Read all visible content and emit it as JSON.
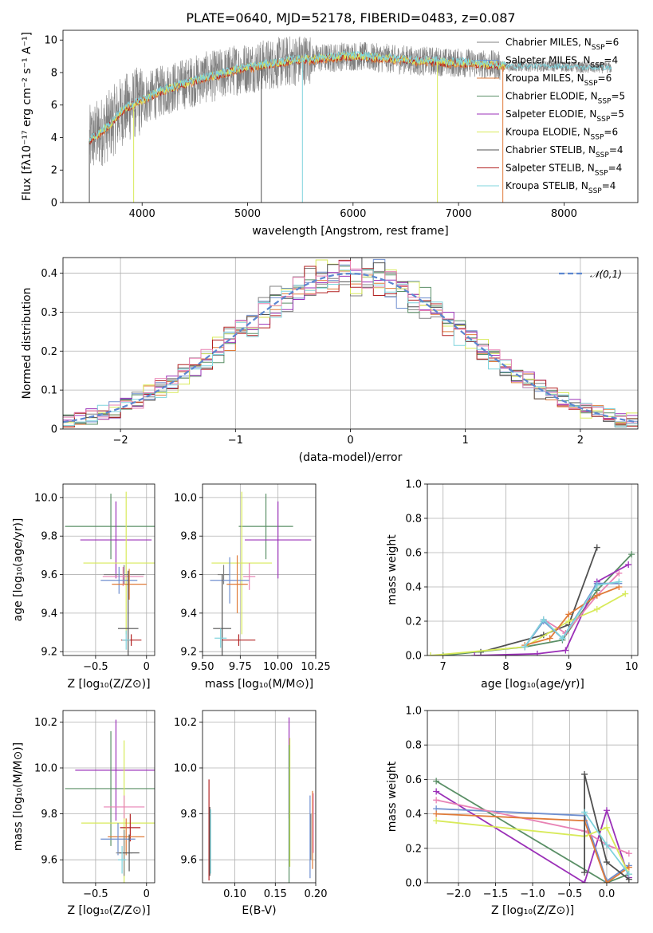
{
  "title": "PLATE=0640, MJD=52178, FIBERID=0483, z=0.087",
  "colors": {
    "Chabrier MILES": "#808080",
    "Salpeter MILES": "#6f8fcf",
    "Kroupa MILES": "#e07b39",
    "Chabrier ELODIE": "#5a8f66",
    "Salpeter ELODIE": "#9b30b8",
    "Kroupa ELODIE": "#d8ea5a",
    "Chabrier STELIB": "#505050",
    "Salpeter STELIB": "#b22222",
    "Kroupa STELIB": "#7fd4dd",
    "pink": "#e882b4",
    "gauss": "#5b86d0"
  },
  "chart_data": [
    {
      "id": "spectrum",
      "type": "line",
      "title": "PLATE=0640, MJD=52178, FIBERID=0483, z=0.087",
      "xlabel": "wavelength [Angstrom, rest frame]",
      "ylabel": "Flux [fλ10⁻¹⁷ erg cm⁻² s⁻¹ A⁻¹]",
      "xlim": [
        3250,
        8700
      ],
      "ylim": [
        0,
        10.6
      ],
      "xticks": [
        4000,
        5000,
        6000,
        7000,
        8000
      ],
      "yticks": [
        0,
        2,
        4,
        6,
        8,
        10
      ],
      "legend": "upper-right",
      "legend_entries": [
        "Chabrier MILES, N_SSP=6",
        "Salpeter MILES, N_SSP=4",
        "Kroupa MILES, N_SSP=6",
        "Chabrier ELODIE, N_SSP=5",
        "Salpeter ELODIE, N_SSP=5",
        "Kroupa ELODIE, N_SSP=6",
        "Chabrier STELIB, N_SSP=4",
        "Salpeter STELIB, N_SSP=4",
        "Kroupa STELIB, N_SSP=4"
      ],
      "data_trend": {
        "x": [
          3500,
          3600,
          3700,
          3800,
          3900,
          4000,
          4100,
          4200,
          4300,
          4400,
          4500,
          4600,
          4700,
          4800,
          4900,
          5000,
          5100,
          5200,
          5300,
          5400,
          5500,
          5600,
          5700,
          5800,
          5900,
          6000,
          6100,
          6200,
          6300,
          6400,
          6500,
          6600,
          6700,
          6800,
          6900,
          7000,
          7100,
          7200,
          7300,
          7400,
          7600,
          7800,
          8000,
          8200,
          8400
        ],
        "y": [
          3.8,
          4.3,
          4.8,
          5.6,
          6.0,
          6.3,
          6.6,
          6.9,
          7.1,
          7.3,
          7.5,
          7.7,
          7.8,
          8.0,
          8.2,
          8.3,
          8.4,
          8.5,
          8.6,
          8.7,
          8.8,
          8.8,
          8.9,
          8.9,
          9.0,
          9.0,
          9.0,
          8.9,
          8.9,
          8.8,
          8.8,
          8.7,
          8.7,
          8.7,
          8.6,
          8.6,
          8.6,
          8.5,
          8.5,
          8.4,
          8.4,
          8.4,
          8.4,
          8.3,
          8.3
        ]
      }
    },
    {
      "id": "residuals",
      "type": "histogram",
      "xlabel": "(data-model)/error",
      "ylabel": "Normed distribution",
      "xlim": [
        -2.5,
        2.5
      ],
      "ylim": [
        0,
        0.44
      ],
      "xticks": [
        -2,
        -1,
        0,
        1,
        2
      ],
      "yticks": [
        0.0,
        0.1,
        0.2,
        0.3,
        0.4
      ],
      "legend": "upper-right",
      "legend_entries": [
        "𝒩(0,1)"
      ],
      "bin_width": 0.1
    },
    {
      "id": "age_vs_Z",
      "type": "scatter",
      "xlabel": "Z [log₁₀(Z/Z⊙)]",
      "ylabel": "age  [log₁₀(age/yr)]",
      "xlim": [
        -0.82,
        0.08
      ],
      "ylim": [
        9.18,
        10.07
      ],
      "xticks": [
        -0.5,
        0.0
      ],
      "yticks": [
        9.2,
        9.4,
        9.6,
        9.8,
        10.0
      ],
      "points": [
        {
          "label": "Chabrier ELODIE",
          "x": -0.35,
          "y": 9.85,
          "xerr": 0.45,
          "yerr": 0.17
        },
        {
          "label": "Salpeter ELODIE",
          "x": -0.3,
          "y": 9.78,
          "xerr": 0.35,
          "yerr": 0.2
        },
        {
          "label": "Kroupa ELODIE",
          "x": -0.2,
          "y": 9.66,
          "xerr": 0.42,
          "yerr": 0.37
        },
        {
          "label": "Chabrier MILES",
          "x": -0.22,
          "y": 9.6,
          "xerr": 0.2,
          "yerr": 0.05
        },
        {
          "label": "pink",
          "x": -0.23,
          "y": 9.59,
          "xerr": 0.2,
          "yerr": 0.05
        },
        {
          "label": "Salpeter MILES",
          "x": -0.27,
          "y": 9.57,
          "xerr": 0.18,
          "yerr": 0.07
        },
        {
          "label": "Kroupa MILES",
          "x": -0.17,
          "y": 9.55,
          "xerr": 0.17,
          "yerr": 0.08
        },
        {
          "label": "Chabrier STELIB",
          "x": -0.18,
          "y": 9.32,
          "xerr": 0.1,
          "yerr": 0.3
        },
        {
          "label": "Salpeter STELIB",
          "x": -0.15,
          "y": 9.26,
          "xerr": 0.1,
          "yerr": 0.03
        },
        {
          "label": "Kroupa STELIB",
          "x": -0.2,
          "y": 9.26,
          "xerr": 0.04,
          "yerr": 0.05
        }
      ]
    },
    {
      "id": "age_vs_mass",
      "type": "scatter",
      "xlabel": "mass [log₁₀(M/M⊙)]",
      "ylabel": "",
      "xlim": [
        9.5,
        10.25
      ],
      "ylim": [
        9.18,
        10.07
      ],
      "xticks": [
        9.5,
        9.75,
        10.0,
        10.25
      ],
      "xticklabels": [
        "9.50",
        "9.75",
        "10.00",
        "10.25"
      ],
      "yticks": [
        9.2,
        9.4,
        9.6,
        9.8,
        10.0
      ],
      "points": [
        {
          "label": "Chabrier ELODIE",
          "x": 9.92,
          "y": 9.85,
          "xerr": 0.18,
          "yerr": 0.17
        },
        {
          "label": "Salpeter ELODIE",
          "x": 10.0,
          "y": 9.78,
          "xerr": 0.22,
          "yerr": 0.2
        },
        {
          "label": "Kroupa ELODIE",
          "x": 9.76,
          "y": 9.66,
          "xerr": 0.2,
          "yerr": 0.37
        },
        {
          "label": "Chabrier MILES",
          "x": 9.64,
          "y": 9.6,
          "xerr": 0.04,
          "yerr": 0.05
        },
        {
          "label": "pink",
          "x": 9.81,
          "y": 9.59,
          "xerr": 0.04,
          "yerr": 0.07
        },
        {
          "label": "Salpeter MILES",
          "x": 9.68,
          "y": 9.57,
          "xerr": 0.13,
          "yerr": 0.12
        },
        {
          "label": "Kroupa MILES",
          "x": 9.73,
          "y": 9.55,
          "xerr": 0.07,
          "yerr": 0.15
        },
        {
          "label": "Chabrier STELIB",
          "x": 9.63,
          "y": 9.32,
          "xerr": 0.06,
          "yerr": 0.28
        },
        {
          "label": "Salpeter STELIB",
          "x": 9.74,
          "y": 9.26,
          "xerr": 0.11,
          "yerr": 0.03
        },
        {
          "label": "Kroupa STELIB",
          "x": 9.62,
          "y": 9.27,
          "xerr": 0.04,
          "yerr": 0.05
        }
      ]
    },
    {
      "id": "mass_weight_vs_age",
      "type": "line",
      "xlabel": "age  [log₁₀(age/yr)]",
      "ylabel": "mass weight",
      "xlim": [
        6.75,
        10.1
      ],
      "ylim": [
        0,
        1.0
      ],
      "xticks": [
        7,
        8,
        9,
        10
      ],
      "yticks": [
        0.0,
        0.2,
        0.4,
        0.6,
        0.8,
        1.0
      ],
      "series": [
        {
          "label": "Chabrier STELIB",
          "x": [
            7.6,
            8.6,
            9.0,
            9.45
          ],
          "y": [
            0.02,
            0.12,
            0.18,
            0.63
          ]
        },
        {
          "label": "Chabrier ELODIE",
          "x": [
            7.0,
            8.3,
            8.9,
            9.45,
            10.0
          ],
          "y": [
            0.0,
            0.05,
            0.09,
            0.38,
            0.59
          ]
        },
        {
          "label": "Salpeter ELODIE",
          "x": [
            7.5,
            8.5,
            8.95,
            9.45,
            9.95
          ],
          "y": [
            0.0,
            0.01,
            0.03,
            0.43,
            0.53
          ]
        },
        {
          "label": "Kroupa ELODIE",
          "x": [
            6.8,
            8.3,
            9.0,
            9.45,
            9.9
          ],
          "y": [
            0.0,
            0.05,
            0.2,
            0.27,
            0.36
          ]
        },
        {
          "label": "pink",
          "x": [
            8.3,
            8.6,
            8.95,
            9.45,
            9.8
          ],
          "y": [
            0.05,
            0.21,
            0.13,
            0.35,
            0.48
          ]
        },
        {
          "label": "Salpeter MILES",
          "x": [
            8.3,
            8.6,
            8.9,
            9.45,
            9.8
          ],
          "y": [
            0.05,
            0.2,
            0.1,
            0.42,
            0.42
          ]
        },
        {
          "label": "Kroupa MILES",
          "x": [
            8.3,
            8.7,
            9.0,
            9.45,
            9.8
          ],
          "y": [
            0.06,
            0.1,
            0.24,
            0.35,
            0.4
          ]
        },
        {
          "label": "Kroupa STELIB",
          "x": [
            8.3,
            8.6,
            8.9,
            9.45,
            9.8
          ],
          "y": [
            0.05,
            0.21,
            0.1,
            0.41,
            0.43
          ]
        }
      ]
    },
    {
      "id": "mass_vs_Z",
      "type": "scatter",
      "xlabel": "Z [log₁₀(Z/Z⊙)]",
      "ylabel": "mass [log₁₀(M/M⊙)]",
      "xlim": [
        -0.82,
        0.08
      ],
      "ylim": [
        9.5,
        10.25
      ],
      "xticks": [
        -0.5,
        0.0
      ],
      "yticks": [
        9.6,
        9.8,
        10.0,
        10.2
      ],
      "points": [
        {
          "label": "Salpeter ELODIE",
          "x": -0.3,
          "y": 9.99,
          "xerr": 0.4,
          "yerr": 0.22
        },
        {
          "label": "Chabrier ELODIE",
          "x": -0.35,
          "y": 9.91,
          "xerr": 0.45,
          "yerr": 0.25
        },
        {
          "label": "Kroupa ELODIE",
          "x": -0.22,
          "y": 9.76,
          "xerr": 0.42,
          "yerr": 0.36
        },
        {
          "label": "pink",
          "x": -0.22,
          "y": 9.83,
          "xerr": 0.2,
          "yerr": 0.05
        },
        {
          "label": "Salpeter STELIB",
          "x": -0.16,
          "y": 9.74,
          "xerr": 0.1,
          "yerr": 0.06
        },
        {
          "label": "Kroupa MILES",
          "x": -0.2,
          "y": 9.7,
          "xerr": 0.18,
          "yerr": 0.08
        },
        {
          "label": "Salpeter MILES",
          "x": -0.28,
          "y": 9.69,
          "xerr": 0.17,
          "yerr": 0.07
        },
        {
          "label": "Chabrier MILES",
          "x": -0.22,
          "y": 9.63,
          "xerr": 0.08,
          "yerr": 0.1
        },
        {
          "label": "Chabrier STELIB",
          "x": -0.17,
          "y": 9.63,
          "xerr": 0.1,
          "yerr": 0.08
        },
        {
          "label": "Kroupa STELIB",
          "x": -0.24,
          "y": 9.6,
          "xerr": 0.04,
          "yerr": 0.06
        }
      ]
    },
    {
      "id": "mass_vs_EBV",
      "type": "scatter",
      "xlabel": "E(B-V)",
      "ylabel": "",
      "xlim": [
        0.06,
        0.2
      ],
      "ylim": [
        9.5,
        10.25
      ],
      "xticks": [
        0.1,
        0.15,
        0.2
      ],
      "xticklabels": [
        "0.10",
        "0.15",
        "0.20"
      ],
      "yticks": [
        9.6,
        9.8,
        10.0,
        10.2
      ],
      "points": [
        {
          "label": "Salpeter STELIB",
          "x": 0.068,
          "y": 9.73,
          "xerr": 0.0,
          "yerr": 0.22
        },
        {
          "label": "Chabrier STELIB",
          "x": 0.069,
          "y": 9.68,
          "xerr": 0.0,
          "yerr": 0.15
        },
        {
          "label": "Kroupa STELIB",
          "x": 0.07,
          "y": 9.68,
          "xerr": 0.0,
          "yerr": 0.14
        },
        {
          "label": "Salpeter ELODIE",
          "x": 0.167,
          "y": 10.0,
          "xerr": 0.0,
          "yerr": 0.22
        },
        {
          "label": "Kroupa ELODIE",
          "x": 0.168,
          "y": 9.85,
          "xerr": 0.0,
          "yerr": 0.28
        },
        {
          "label": "Chabrier ELODIE",
          "x": 0.167,
          "y": 9.8,
          "xerr": 0.0,
          "yerr": 0.3
        },
        {
          "label": "Salpeter MILES",
          "x": 0.193,
          "y": 9.7,
          "xerr": 0.0,
          "yerr": 0.18
        },
        {
          "label": "Kroupa MILES",
          "x": 0.196,
          "y": 9.73,
          "xerr": 0.0,
          "yerr": 0.17
        },
        {
          "label": "pink",
          "x": 0.197,
          "y": 9.76,
          "xerr": 0.0,
          "yerr": 0.13
        },
        {
          "label": "Chabrier MILES",
          "x": 0.194,
          "y": 9.7,
          "xerr": 0.0,
          "yerr": 0.1
        }
      ]
    },
    {
      "id": "mass_weight_vs_Z",
      "type": "line",
      "xlabel": "Z [log₁₀(Z/Z⊙)]",
      "ylabel": "mass weight",
      "xlim": [
        -2.42,
        0.42
      ],
      "ylim": [
        0,
        1.0
      ],
      "xticks": [
        -2.0,
        -1.5,
        -1.0,
        -0.5,
        0.0
      ],
      "xticklabels": [
        "−2.0",
        "−1.5",
        "−1.0",
        "−0.5",
        "0.0"
      ],
      "yticks": [
        0.0,
        0.2,
        0.4,
        0.6,
        0.8,
        1.0
      ],
      "series": [
        {
          "label": "Chabrier ELODIE",
          "x": [
            -2.3,
            0.0,
            0.3
          ],
          "y": [
            0.59,
            0.0,
            0.05
          ]
        },
        {
          "label": "Salpeter ELODIE",
          "x": [
            -2.3,
            -0.3,
            0.0,
            0.3
          ],
          "y": [
            0.53,
            0.0,
            0.42,
            0.03
          ]
        },
        {
          "label": "Salpeter MILES",
          "x": [
            -2.3,
            -0.3,
            0.0,
            0.3
          ],
          "y": [
            0.43,
            0.39,
            0.01,
            0.1
          ]
        },
        {
          "label": "pink",
          "x": [
            -2.3,
            -0.3,
            0.0,
            0.3
          ],
          "y": [
            0.48,
            0.3,
            0.22,
            0.17
          ]
        },
        {
          "label": "Kroupa MILES",
          "x": [
            -2.3,
            -0.3,
            0.0,
            0.3
          ],
          "y": [
            0.4,
            0.36,
            0.0,
            0.09
          ]
        },
        {
          "label": "Kroupa ELODIE",
          "x": [
            -2.3,
            -0.3,
            0.0,
            0.3
          ],
          "y": [
            0.36,
            0.27,
            0.32,
            0.05
          ]
        },
        {
          "label": "Chabrier STELIB",
          "x": [
            -0.3,
            -0.3,
            0.0,
            0.3
          ],
          "y": [
            0.06,
            0.63,
            0.12,
            0.02
          ]
        },
        {
          "label": "Kroupa STELIB",
          "x": [
            -0.3,
            0.0,
            0.3
          ],
          "y": [
            0.41,
            0.22,
            0.05
          ]
        }
      ]
    }
  ]
}
